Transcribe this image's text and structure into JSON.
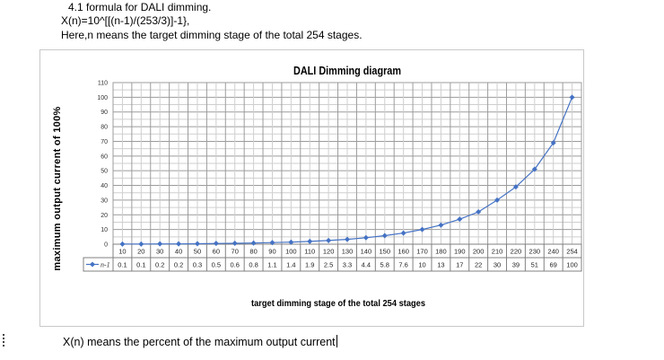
{
  "text": {
    "line1": "4.1 formula  for DALI  dimming.",
    "line2": "X(n)=10^[[(n-1)/(253/3)]-1},",
    "line3": "Here,n  means the target dimming stage of the total 254  stages.",
    "y_axis_label": "maximum output current of 100%",
    "bottom_line": "X(n) means the percent of the maximum output current"
  },
  "chart_data": {
    "type": "line",
    "title": "DALI Dimming diagram",
    "xlabel": "target dimming stage of the total 254 stages",
    "ylabel": "",
    "ylim": [
      0,
      110
    ],
    "yticks": [
      "0",
      "10",
      "20",
      "30",
      "40",
      "50",
      "60",
      "70",
      "80",
      "90",
      "100",
      "110"
    ],
    "grid": true,
    "legend": "bottom-left, inside data table",
    "categories": [
      "10",
      "20",
      "30",
      "40",
      "50",
      "60",
      "70",
      "80",
      "90",
      "100",
      "110",
      "120",
      "130",
      "140",
      "150",
      "160",
      "170",
      "180",
      "190",
      "200",
      "210",
      "220",
      "230",
      "240",
      "254"
    ],
    "series": [
      {
        "name": "n-1",
        "color": "#4472C4",
        "values": [
          0.1,
          0.1,
          0.2,
          0.2,
          0.3,
          0.5,
          0.6,
          0.8,
          1.1,
          1.4,
          1.9,
          2.5,
          3.3,
          4.4,
          5.8,
          7.6,
          10,
          13,
          17,
          22,
          30,
          39,
          51,
          69,
          100
        ],
        "labels": [
          "0.1",
          "0.1",
          "0.2",
          "0.2",
          "0.3",
          "0.5",
          "0.6",
          "0.8",
          "1.1",
          "1.4",
          "1.9",
          "2.5",
          "3.3",
          "4.4",
          "5.8",
          "7.6",
          "10",
          "13",
          "17",
          "22",
          "30",
          "39",
          "51",
          "69",
          "100"
        ]
      }
    ],
    "data_table": true
  }
}
